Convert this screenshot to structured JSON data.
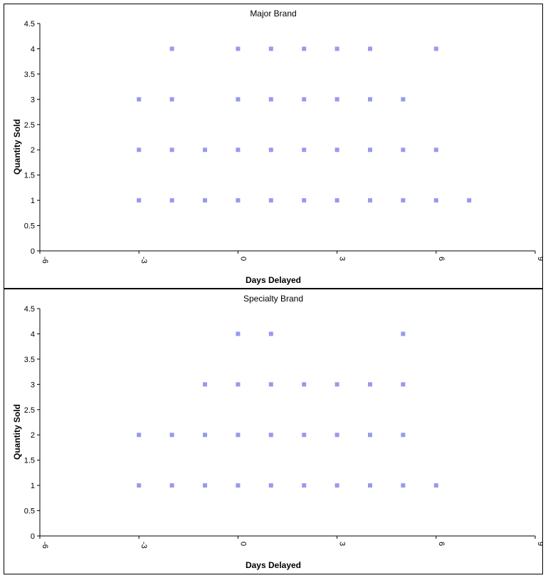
{
  "chart_data": [
    {
      "type": "scatter",
      "title": "Major Brand",
      "xlabel": "Days Delayed",
      "ylabel": "Quantity Sold",
      "xlim": [
        -6,
        9
      ],
      "ylim": [
        0,
        4.5
      ],
      "xticks": [
        "-6",
        "-3",
        "0",
        "3",
        "6",
        "9"
      ],
      "yticks": [
        "0",
        "0.5",
        "1",
        "1.5",
        "2",
        "2.5",
        "3",
        "3.5",
        "4",
        "4.5"
      ],
      "grid": false,
      "marker_color": "#9999ee",
      "points": [
        {
          "x": -3,
          "y": 1
        },
        {
          "x": -2,
          "y": 1
        },
        {
          "x": -1,
          "y": 1
        },
        {
          "x": 0,
          "y": 1
        },
        {
          "x": 1,
          "y": 1
        },
        {
          "x": 2,
          "y": 1
        },
        {
          "x": 3,
          "y": 1
        },
        {
          "x": 4,
          "y": 1
        },
        {
          "x": 5,
          "y": 1
        },
        {
          "x": 6,
          "y": 1
        },
        {
          "x": 7,
          "y": 1
        },
        {
          "x": -3,
          "y": 2
        },
        {
          "x": -2,
          "y": 2
        },
        {
          "x": -1,
          "y": 2
        },
        {
          "x": 0,
          "y": 2
        },
        {
          "x": 1,
          "y": 2
        },
        {
          "x": 2,
          "y": 2
        },
        {
          "x": 3,
          "y": 2
        },
        {
          "x": 4,
          "y": 2
        },
        {
          "x": 5,
          "y": 2
        },
        {
          "x": 6,
          "y": 2
        },
        {
          "x": -3,
          "y": 3
        },
        {
          "x": -2,
          "y": 3
        },
        {
          "x": 0,
          "y": 3
        },
        {
          "x": 1,
          "y": 3
        },
        {
          "x": 2,
          "y": 3
        },
        {
          "x": 3,
          "y": 3
        },
        {
          "x": 4,
          "y": 3
        },
        {
          "x": 5,
          "y": 3
        },
        {
          "x": -2,
          "y": 4
        },
        {
          "x": 0,
          "y": 4
        },
        {
          "x": 1,
          "y": 4
        },
        {
          "x": 2,
          "y": 4
        },
        {
          "x": 3,
          "y": 4
        },
        {
          "x": 4,
          "y": 4
        },
        {
          "x": 6,
          "y": 4
        }
      ]
    },
    {
      "type": "scatter",
      "title": "Specialty Brand",
      "xlabel": "Days Delayed",
      "ylabel": "Quantity Sold",
      "xlim": [
        -6,
        9
      ],
      "ylim": [
        0,
        4.5
      ],
      "xticks": [
        "-6",
        "-3",
        "0",
        "3",
        "6",
        "9"
      ],
      "yticks": [
        "0",
        "0.5",
        "1",
        "1.5",
        "2",
        "2.5",
        "3",
        "3.5",
        "4",
        "4.5"
      ],
      "grid": false,
      "marker_color": "#9999ee",
      "points": [
        {
          "x": -3,
          "y": 1
        },
        {
          "x": -2,
          "y": 1
        },
        {
          "x": -1,
          "y": 1
        },
        {
          "x": 0,
          "y": 1
        },
        {
          "x": 1,
          "y": 1
        },
        {
          "x": 2,
          "y": 1
        },
        {
          "x": 3,
          "y": 1
        },
        {
          "x": 4,
          "y": 1
        },
        {
          "x": 5,
          "y": 1
        },
        {
          "x": 6,
          "y": 1
        },
        {
          "x": -3,
          "y": 2
        },
        {
          "x": -2,
          "y": 2
        },
        {
          "x": -1,
          "y": 2
        },
        {
          "x": 0,
          "y": 2
        },
        {
          "x": 1,
          "y": 2
        },
        {
          "x": 2,
          "y": 2
        },
        {
          "x": 3,
          "y": 2
        },
        {
          "x": 4,
          "y": 2
        },
        {
          "x": 5,
          "y": 2
        },
        {
          "x": -1,
          "y": 3
        },
        {
          "x": 0,
          "y": 3
        },
        {
          "x": 1,
          "y": 3
        },
        {
          "x": 2,
          "y": 3
        },
        {
          "x": 3,
          "y": 3
        },
        {
          "x": 4,
          "y": 3
        },
        {
          "x": 5,
          "y": 3
        },
        {
          "x": 0,
          "y": 4
        },
        {
          "x": 1,
          "y": 4
        },
        {
          "x": 5,
          "y": 4
        }
      ]
    }
  ]
}
